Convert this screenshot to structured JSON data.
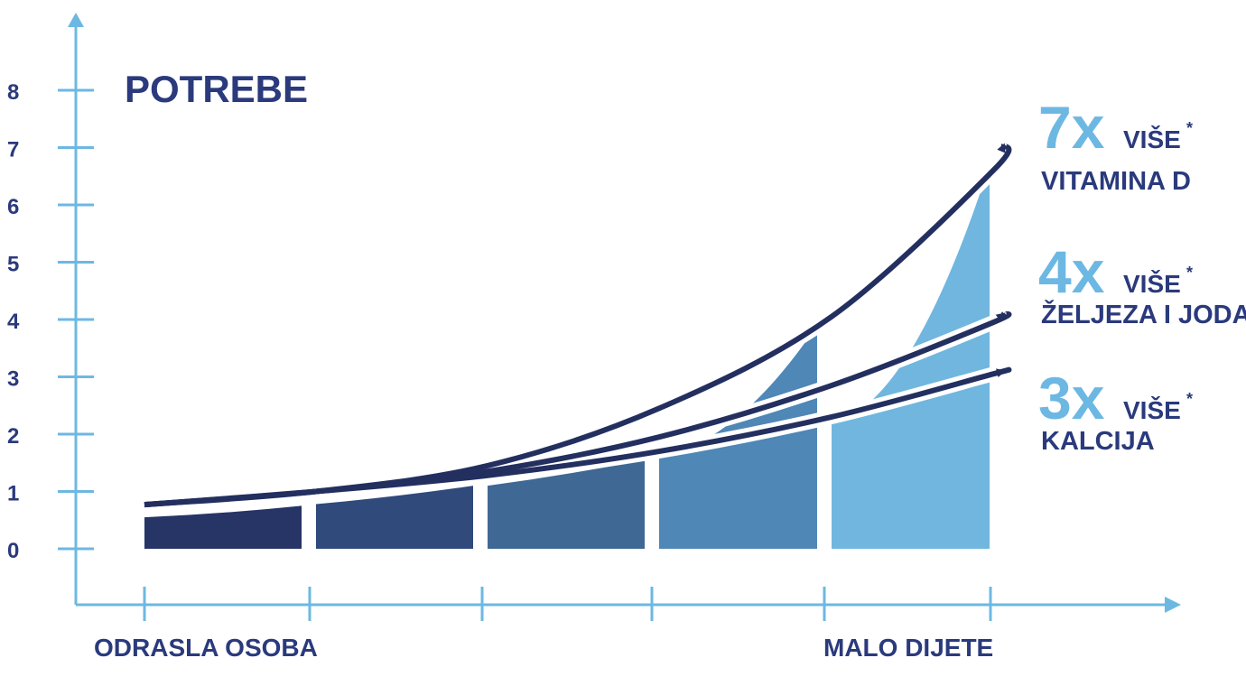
{
  "colors": {
    "axis": "#6cb8e3",
    "navy": "#2a3a7c",
    "arrow": "#232f5f",
    "band_dark": "#273466",
    "band_mid1": "#2f4a7b",
    "band_mid2": "#3f6894",
    "band_mid3": "#4f87b6",
    "band_light": "#70b6df",
    "factor": "#6cb8e3"
  },
  "chart_data": {
    "type": "area",
    "title": "POTREBE",
    "y_ticks": [
      "0",
      "1",
      "2",
      "3",
      "4",
      "5",
      "6",
      "7",
      "8"
    ],
    "ylim": [
      0,
      8
    ],
    "x_labels": {
      "start": "ODRASLA OSOBA",
      "end": "MALO DIJETE"
    },
    "x_tick_count": 6,
    "bands": [
      {
        "left": 0.55,
        "right": 0.75,
        "mid_upper": null,
        "right_upper": null
      },
      {
        "left": 0.78,
        "right": 1.1,
        "mid_upper": null,
        "right_upper": null
      },
      {
        "left": 1.1,
        "right": 1.55,
        "mid_upper": null,
        "right_upper": null
      },
      {
        "left": 1.6,
        "right": 2.2,
        "mid_upper": 3.9,
        "right_upper": 3.9
      },
      {
        "left": 2.2,
        "right": 2.8,
        "mid_upper": 3.85,
        "right_upper": 6.7
      }
    ],
    "series": [
      {
        "factor": "7x",
        "suffix": "VIŠE",
        "asterisk": "*",
        "nutrient": "VITAMINA D",
        "values": [
          0.77,
          1.0,
          1.45,
          2.45,
          4.05,
          6.6,
          7.05
        ]
      },
      {
        "factor": "4x",
        "suffix": "VIŠE",
        "asterisk": "*",
        "nutrient": "ŽELJEZA I JODA",
        "values": [
          0.77,
          1.0,
          1.35,
          1.95,
          2.85,
          3.95,
          4.1
        ]
      },
      {
        "factor": "3x",
        "suffix": "VIŠE",
        "asterisk": "*",
        "nutrient": "KALCIJA",
        "values": [
          0.77,
          1.0,
          1.28,
          1.7,
          2.3,
          3.05,
          3.1
        ]
      }
    ]
  }
}
